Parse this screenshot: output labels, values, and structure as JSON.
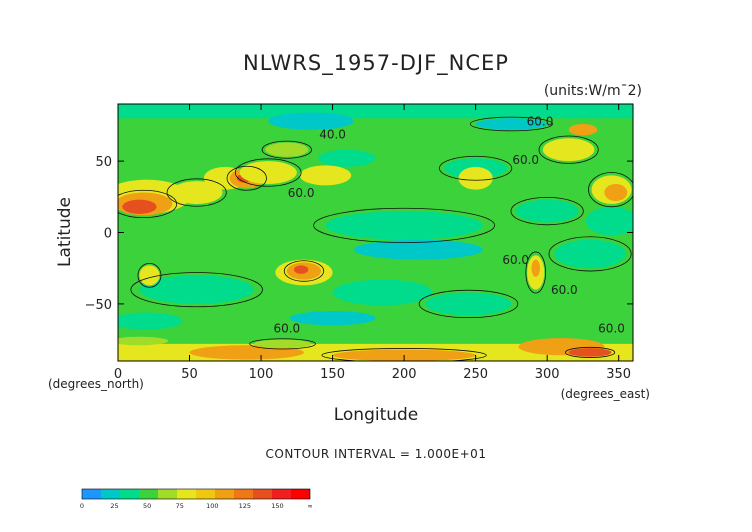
{
  "chart_data": {
    "type": "heatmap",
    "title": "NLWRS_1957-DJF_NCEP",
    "units_label": "(units:W/m¯2)",
    "xlabel": "Longitude",
    "ylabel": "Latitude",
    "x_sublabel": "(degrees_east)",
    "y_sublabel": "(degrees_north)",
    "x_ticks": [
      0,
      50,
      100,
      150,
      200,
      250,
      300,
      350
    ],
    "y_ticks": [
      50,
      0,
      -50
    ],
    "xlim": [
      0,
      360
    ],
    "ylim": [
      -90,
      90
    ],
    "contour_interval_text": "CONTOUR INTERVAL = 1.000E+01",
    "contour_labels": [
      {
        "text": "60.0",
        "lon": 295,
        "lat": 75
      },
      {
        "text": "40.0",
        "lon": 150,
        "lat": 66
      },
      {
        "text": "60.0",
        "lon": 285,
        "lat": 48
      },
      {
        "text": "60.0",
        "lon": 128,
        "lat": 25
      },
      {
        "text": "60.0",
        "lon": 278,
        "lat": -22
      },
      {
        "text": "60.0",
        "lon": 312,
        "lat": -43
      },
      {
        "text": "60.0",
        "lon": 118,
        "lat": -70
      },
      {
        "text": "60.0",
        "lon": 345,
        "lat": -70
      }
    ],
    "colorbar": {
      "ticks": [
        "0",
        "25",
        "50",
        "75",
        "100",
        "125",
        "150",
        "∞"
      ],
      "colors": [
        "#1e96ff",
        "#00c8c8",
        "#00dc8c",
        "#3cd23c",
        "#a0dc28",
        "#e6e61e",
        "#f0c814",
        "#f0a014",
        "#f07814",
        "#e65020",
        "#f01e1e",
        "#ff0000"
      ]
    },
    "field_colors": {
      "cyan": "#00c8c8",
      "teal": "#00dc8c",
      "green": "#3cd23c",
      "lime": "#a0dc28",
      "yellow": "#e6e61e",
      "orange": "#f0a014",
      "red": "#e65020"
    }
  }
}
